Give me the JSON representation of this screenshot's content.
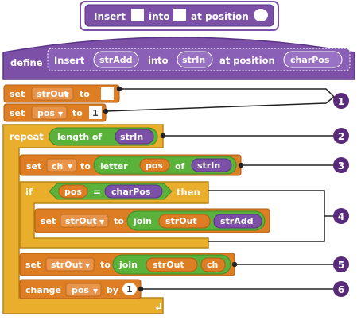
{
  "call_block": {
    "word_insert": "Insert",
    "word_into": "into",
    "word_at_position": "at position"
  },
  "define_block": {
    "keyword": "define",
    "word_insert": "Insert",
    "param_str_add": "strAdd",
    "word_into": "into",
    "param_str_in": "strIn",
    "word_at_position": "at position",
    "param_char_pos": "charPos"
  },
  "script": {
    "set_kw": "set",
    "to_kw": "to",
    "var_str_out": "strOut",
    "var_pos": "pos",
    "var_ch": "ch",
    "pos_init": "1",
    "repeat_kw": "repeat",
    "length_of": "length of",
    "str_in": "strIn",
    "letter_kw": "letter",
    "of_kw": "of",
    "if_kw": "if",
    "equals": "=",
    "char_pos": "charPos",
    "then_kw": "then",
    "join_kw": "join",
    "str_add": "strAdd",
    "change_kw": "change",
    "by_kw": "by",
    "change_by": "1"
  },
  "callouts": [
    "1",
    "2",
    "3",
    "4",
    "5",
    "6"
  ],
  "colors": {
    "purple": "#7b50a6",
    "purple_dark": "#5a3585",
    "orange": "#dd7e25",
    "orange_dark": "#b05d12",
    "gold": "#e8ae2c",
    "gold_dark": "#b9851a",
    "green": "#5bb23b",
    "green_dark": "#3f8c24",
    "callout": "#5a2a7a"
  }
}
